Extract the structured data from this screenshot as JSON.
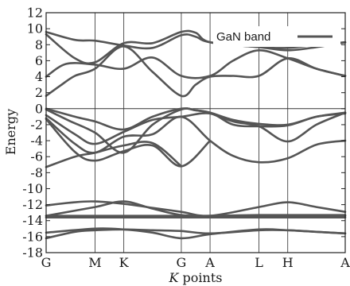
{
  "chart_data": {
    "type": "line",
    "xlabel_italic": "K",
    "xlabel_rest": " points",
    "ylabel": "Energy",
    "ylim": [
      -18,
      12
    ],
    "y_ticks": [
      -18,
      -16,
      -14,
      -12,
      -10,
      -8,
      -6,
      -4,
      -2,
      0,
      2,
      4,
      6,
      8,
      10,
      12
    ],
    "k_points": [
      {
        "label": "G",
        "x": 0
      },
      {
        "label": "M",
        "x": 1.7
      },
      {
        "label": "K",
        "x": 2.7
      },
      {
        "label": "G",
        "x": 4.7
      },
      {
        "label": "A",
        "x": 5.7
      },
      {
        "label": "L",
        "x": 7.4
      },
      {
        "label": "H",
        "x": 8.4
      },
      {
        "label": "A",
        "x": 10.4
      }
    ],
    "fermi_level": 0,
    "legend": [
      {
        "name": "GaN band",
        "color": "#555555"
      }
    ],
    "series": [
      {
        "points": [
          [
            0,
            1.6
          ],
          [
            0.5,
            2.9
          ],
          [
            1.0,
            4.1
          ],
          [
            1.7,
            5.0
          ],
          [
            2.7,
            7.8
          ],
          [
            3.7,
            4.6
          ],
          [
            4.7,
            1.6
          ],
          [
            5.2,
            3.0
          ],
          [
            5.7,
            4.0
          ],
          [
            6.5,
            4.1
          ],
          [
            7.4,
            4.1
          ],
          [
            8.4,
            6.3
          ],
          [
            9.4,
            5.0
          ],
          [
            10.4,
            4.1
          ]
        ]
      },
      {
        "points": [
          [
            0,
            4.0
          ],
          [
            0.7,
            5.6
          ],
          [
            1.7,
            5.5
          ],
          [
            2.7,
            5.0
          ],
          [
            3.7,
            6.4
          ],
          [
            4.7,
            4.1
          ],
          [
            5.7,
            4.1
          ],
          [
            6.5,
            6.0
          ],
          [
            7.4,
            7.3
          ],
          [
            8.4,
            6.3
          ],
          [
            9.4,
            5.0
          ],
          [
            10.4,
            4.1
          ]
        ]
      },
      {
        "points": [
          [
            0,
            9.3
          ],
          [
            1.0,
            6.3
          ],
          [
            1.7,
            5.8
          ],
          [
            2.7,
            8.2
          ],
          [
            3.7,
            8.2
          ],
          [
            4.7,
            9.6
          ],
          [
            5.2,
            9.5
          ],
          [
            5.7,
            8.3
          ],
          [
            7.4,
            7.7
          ],
          [
            8.4,
            7.3
          ],
          [
            9.4,
            7.7
          ],
          [
            10.4,
            8.3
          ]
        ]
      },
      {
        "points": [
          [
            0,
            9.6
          ],
          [
            1.0,
            8.6
          ],
          [
            1.7,
            8.5
          ],
          [
            2.7,
            7.9
          ],
          [
            3.7,
            7.6
          ],
          [
            4.7,
            9.2
          ],
          [
            5.2,
            9.0
          ],
          [
            5.7,
            8.3
          ],
          [
            7.4,
            7.7
          ],
          [
            8.4,
            7.6
          ],
          [
            9.4,
            8.0
          ],
          [
            10.4,
            8.3
          ]
        ]
      },
      {
        "points": [
          [
            0,
            0.0
          ],
          [
            1.0,
            -1.0
          ],
          [
            1.7,
            -1.6
          ],
          [
            2.7,
            -2.6
          ],
          [
            3.7,
            -1.0
          ],
          [
            4.7,
            0.0
          ],
          [
            5.2,
            -0.2
          ],
          [
            5.7,
            -0.5
          ],
          [
            6.5,
            -1.4
          ],
          [
            7.4,
            -1.9
          ],
          [
            8.4,
            -2.0
          ],
          [
            9.4,
            -1.0
          ],
          [
            10.4,
            -0.5
          ]
        ]
      },
      {
        "points": [
          [
            0,
            -0.1
          ],
          [
            0.8,
            -1.5
          ],
          [
            1.7,
            -3.0
          ],
          [
            2.7,
            -5.5
          ],
          [
            3.7,
            -2.0
          ],
          [
            4.7,
            -0.1
          ],
          [
            5.2,
            -0.2
          ],
          [
            5.7,
            -0.5
          ],
          [
            6.5,
            -1.6
          ],
          [
            7.4,
            -2.2
          ],
          [
            8.4,
            -4.1
          ],
          [
            9.4,
            -2.0
          ],
          [
            10.4,
            -0.5
          ]
        ]
      },
      {
        "points": [
          [
            0,
            -0.8
          ],
          [
            1.0,
            -3.2
          ],
          [
            1.7,
            -4.4
          ],
          [
            2.7,
            -2.9
          ],
          [
            3.7,
            -1.4
          ],
          [
            4.7,
            -1.0
          ],
          [
            5.7,
            -0.6
          ],
          [
            6.5,
            -2.0
          ],
          [
            7.4,
            -2.2
          ],
          [
            8.4,
            -2.1
          ],
          [
            9.4,
            -1.0
          ],
          [
            10.4,
            -0.6
          ]
        ]
      },
      {
        "points": [
          [
            0,
            -1.2
          ],
          [
            1.0,
            -4.4
          ],
          [
            1.7,
            -5.5
          ],
          [
            2.7,
            -3.5
          ],
          [
            3.7,
            -3.2
          ],
          [
            4.7,
            -1.0
          ],
          [
            5.7,
            -4.0
          ],
          [
            6.5,
            -5.9
          ],
          [
            7.4,
            -6.7
          ],
          [
            8.4,
            -6.2
          ],
          [
            9.4,
            -4.5
          ],
          [
            10.4,
            -4.0
          ]
        ]
      },
      {
        "points": [
          [
            0,
            -1.3
          ],
          [
            1.0,
            -5.4
          ],
          [
            1.7,
            -6.5
          ],
          [
            2.7,
            -5.3
          ],
          [
            3.7,
            -4.6
          ],
          [
            4.7,
            -7.2
          ],
          [
            5.7,
            -4.0
          ]
        ]
      },
      {
        "points": [
          [
            0,
            -7.3
          ],
          [
            1.0,
            -6.0
          ],
          [
            1.7,
            -5.5
          ],
          [
            2.7,
            -4.6
          ],
          [
            3.7,
            -4.3
          ],
          [
            4.7,
            -7.2
          ]
        ]
      },
      {
        "points": [
          [
            0,
            -12.1
          ],
          [
            1.0,
            -11.7
          ],
          [
            1.7,
            -11.6
          ],
          [
            2.7,
            -11.9
          ],
          [
            3.7,
            -12.4
          ],
          [
            4.7,
            -12.9
          ],
          [
            5.7,
            -13.4
          ],
          [
            7.4,
            -12.3
          ],
          [
            8.4,
            -11.7
          ],
          [
            9.4,
            -12.3
          ],
          [
            10.4,
            -12.9
          ]
        ]
      },
      {
        "points": [
          [
            0,
            -13.4
          ],
          [
            1.7,
            -12.3
          ],
          [
            2.7,
            -11.6
          ],
          [
            3.7,
            -12.5
          ],
          [
            4.7,
            -13.3
          ],
          [
            5.7,
            -13.4
          ],
          [
            7.4,
            -13.3
          ],
          [
            10.4,
            -13.3
          ]
        ]
      },
      {
        "points": [
          [
            0,
            -13.4
          ],
          [
            10.4,
            -13.4
          ]
        ]
      },
      {
        "points": [
          [
            0,
            -13.6
          ],
          [
            10.4,
            -13.6
          ]
        ]
      },
      {
        "points": [
          [
            0,
            -15.5
          ],
          [
            1.7,
            -15.0
          ],
          [
            2.7,
            -15.1
          ],
          [
            3.7,
            -15.5
          ],
          [
            4.7,
            -16.2
          ],
          [
            5.7,
            -15.7
          ],
          [
            7.4,
            -15.1
          ],
          [
            8.4,
            -15.2
          ],
          [
            9.4,
            -15.4
          ],
          [
            10.4,
            -15.6
          ]
        ]
      },
      {
        "points": [
          [
            0,
            -16.2
          ],
          [
            1.0,
            -15.4
          ],
          [
            1.7,
            -15.2
          ],
          [
            2.7,
            -15.1
          ],
          [
            3.7,
            -15.2
          ],
          [
            4.7,
            -15.3
          ],
          [
            5.7,
            -15.6
          ],
          [
            7.4,
            -15.2
          ],
          [
            8.4,
            -15.2
          ],
          [
            9.4,
            -15.4
          ],
          [
            10.4,
            -15.6
          ]
        ]
      }
    ]
  }
}
